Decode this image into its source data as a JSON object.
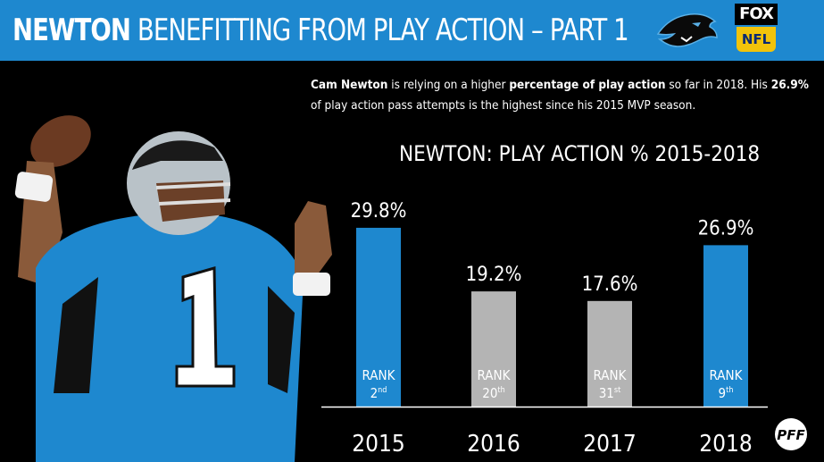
{
  "header": {
    "title_bold": "NEWTON",
    "title_rest": "BENEFITTING FROM PLAY ACTION – PART 1",
    "colors": {
      "background": "#1e88cf",
      "text": "#ffffff"
    },
    "logos": [
      {
        "name": "panther-logo-icon"
      },
      {
        "name": "fox-nfl-logo",
        "top": "FOX",
        "bottom": "NFL"
      }
    ]
  },
  "description": {
    "parts": [
      {
        "text": "Cam Newton",
        "bold": true
      },
      {
        "text": " is relying on a higher ",
        "bold": false
      },
      {
        "text": "percentage of play action",
        "bold": true
      },
      {
        "text": " so far in 2018. His ",
        "bold": false
      },
      {
        "text": "26.9%",
        "bold": true
      },
      {
        "text": " of play action pass attempts",
        "bold": true
      },
      {
        "text": " is the highest since his 2015 MVP season.",
        "bold": false
      }
    ]
  },
  "chart_data": {
    "type": "bar",
    "title": "NEWTON: PLAY ACTION % 2015-2018",
    "categories": [
      "2015",
      "2016",
      "2017",
      "2018"
    ],
    "values": [
      29.8,
      19.2,
      17.6,
      26.9
    ],
    "value_labels": [
      "29.8%",
      "19.2%",
      "17.6%",
      "26.9%"
    ],
    "ranks": [
      {
        "label": "RANK",
        "num": "2",
        "suffix": "nd"
      },
      {
        "label": "RANK",
        "num": "20",
        "suffix": "th"
      },
      {
        "label": "RANK",
        "num": "31",
        "suffix": "st"
      },
      {
        "label": "RANK",
        "num": "9",
        "suffix": "th"
      }
    ],
    "bar_colors": [
      "#1e88cf",
      "#b4b4b4",
      "#b4b4b4",
      "#1e88cf"
    ],
    "ylim": [
      0,
      35
    ],
    "xlabel": "",
    "ylabel": "",
    "grid": false,
    "legend": "none"
  },
  "footer": {
    "logo": "pff-logo-icon"
  }
}
